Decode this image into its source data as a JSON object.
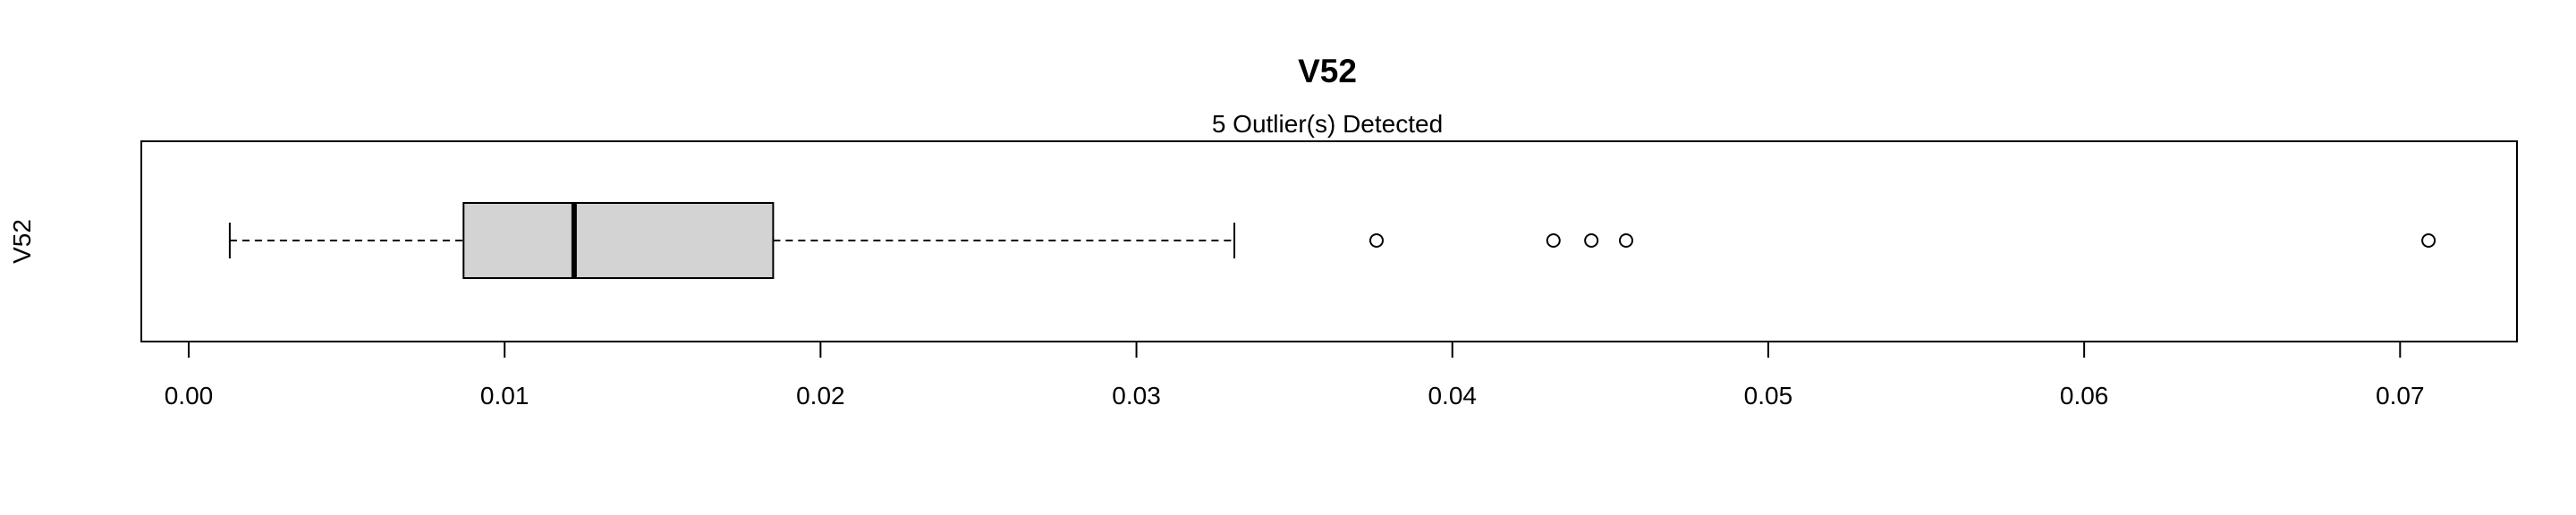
{
  "chart_data": {
    "type": "boxplot",
    "orientation": "horizontal",
    "title": "V52",
    "subtitle": "5 Outlier(s) Detected",
    "ylabel": "V52",
    "xlabel": "",
    "xlim": [
      -0.0015,
      0.0737
    ],
    "x_ticks": [
      0.0,
      0.01,
      0.02,
      0.03,
      0.04,
      0.05,
      0.06,
      0.07
    ],
    "x_tick_labels": [
      "0.00",
      "0.01",
      "0.02",
      "0.03",
      "0.04",
      "0.05",
      "0.06",
      "0.07"
    ],
    "box": {
      "whisker_low": 0.0013,
      "q1": 0.0087,
      "median": 0.0122,
      "q3": 0.0185,
      "whisker_high": 0.0331
    },
    "outliers": [
      0.0376,
      0.0432,
      0.0444,
      0.0455,
      0.0709
    ],
    "box_fill": "#d3d3d3",
    "stroke": "#000000"
  }
}
